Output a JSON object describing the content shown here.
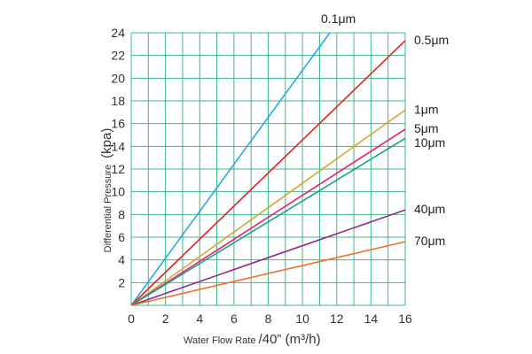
{
  "chart_data": {
    "type": "line",
    "xlim": [
      0,
      16
    ],
    "ylim": [
      0,
      24
    ],
    "x_ticks": [
      "0",
      "2",
      "4",
      "6",
      "8",
      "10",
      "12",
      "14",
      "16"
    ],
    "y_ticks": [
      "2",
      "4",
      "6",
      "8",
      "10",
      "12",
      "14",
      "16",
      "18",
      "20",
      "22",
      "24"
    ],
    "ylabel_small": "Differential Pressure",
    "ylabel_big": "(kpa)",
    "xlabel_small": "Water Flow Rate",
    "xlabel_big": "/40” (m³/h)",
    "grid": true,
    "series": [
      {
        "name": "0.1μm",
        "color": "#29a9e0",
        "x": [
          0,
          11.6
        ],
        "y": [
          0,
          24
        ]
      },
      {
        "name": "0.5μm",
        "color": "#e61e25",
        "x": [
          0,
          16
        ],
        "y": [
          0,
          23.3
        ]
      },
      {
        "name": "1μm",
        "color": "#d4a72c",
        "x": [
          0,
          16
        ],
        "y": [
          0,
          17.2
        ]
      },
      {
        "name": "5μm",
        "color": "#e6246e",
        "x": [
          0,
          16
        ],
        "y": [
          0,
          15.5
        ]
      },
      {
        "name": "10μm",
        "color": "#12a58c",
        "x": [
          0,
          16
        ],
        "y": [
          0,
          14.7
        ]
      },
      {
        "name": "40μm",
        "color": "#8b2a8e",
        "x": [
          0,
          16
        ],
        "y": [
          0,
          8.4
        ]
      },
      {
        "name": "70μm",
        "color": "#f26f22",
        "x": [
          0,
          16
        ],
        "y": [
          0,
          5.6
        ]
      }
    ]
  }
}
